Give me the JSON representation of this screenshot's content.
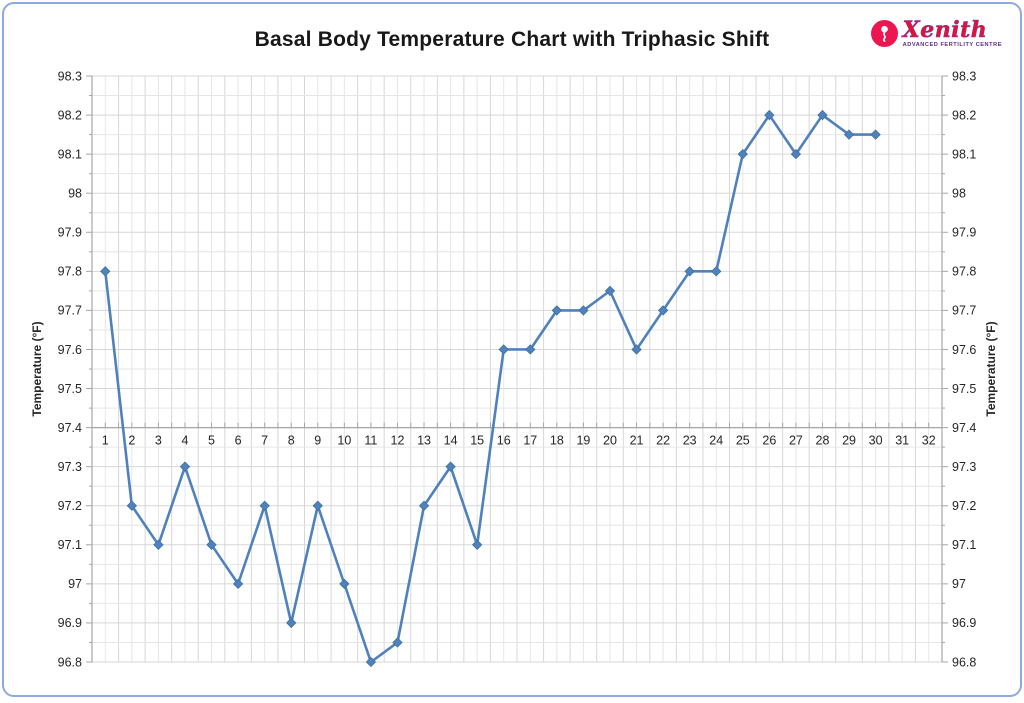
{
  "header": {
    "title": "Basal Body Temperature Chart with Triphasic Shift"
  },
  "logo": {
    "brand": "Xenith",
    "tagline": "ADVANCED FERTILITY CENTRE",
    "brand_color": "#e8112d",
    "tagline_color": "#5b2a86",
    "mark_color": "#ee1650",
    "icon": "sperm-icon"
  },
  "chart_data": {
    "type": "line",
    "title": "Basal Body Temperature Chart with Triphasic Shift",
    "x": [
      1,
      2,
      3,
      4,
      5,
      6,
      7,
      8,
      9,
      10,
      11,
      12,
      13,
      14,
      15,
      16,
      17,
      18,
      19,
      20,
      21,
      22,
      23,
      24,
      25,
      26,
      27,
      28,
      29,
      30
    ],
    "values": [
      97.8,
      97.2,
      97.1,
      97.3,
      97.1,
      97.0,
      97.2,
      96.9,
      97.2,
      97.0,
      96.8,
      96.85,
      97.2,
      97.3,
      97.1,
      97.6,
      97.6,
      97.7,
      97.7,
      97.75,
      97.6,
      97.7,
      97.8,
      97.8,
      98.1,
      98.2,
      98.1,
      98.2,
      98.15,
      98.15
    ],
    "xlabel": "",
    "ylabel_left": "Temperature (°F)",
    "ylabel_right": "Temperature (°F)",
    "ylim": [
      96.8,
      98.3
    ],
    "y_major_step": 0.1,
    "y_minor_step": 0.05,
    "y_tick_labels": [
      "96.8",
      "96.9",
      "97",
      "97.1",
      "97.2",
      "97.3",
      "97.4",
      "97.5",
      "97.6",
      "97.7",
      "97.8",
      "97.9",
      "98",
      "98.1",
      "98.2",
      "98.3"
    ],
    "x_categories": 32,
    "x_tick_labels": [
      "1",
      "2",
      "3",
      "4",
      "5",
      "6",
      "7",
      "8",
      "9",
      "10",
      "11",
      "12",
      "13",
      "14",
      "15",
      "16",
      "17",
      "18",
      "19",
      "20",
      "21",
      "22",
      "23",
      "24",
      "25",
      "26",
      "27",
      "28",
      "29",
      "30",
      "31",
      "32"
    ],
    "x_axis_cross_at": 97.4,
    "grid": true,
    "legend": "none",
    "marker": "diamond",
    "line_color": "#4f81bd",
    "marker_edge_color": "#41729f",
    "grid_major_color": "#d7d7d7",
    "grid_minor_color": "#e6e6e6",
    "axis_line_color": "#a6a6a6",
    "tick_label_color": "#262626"
  }
}
